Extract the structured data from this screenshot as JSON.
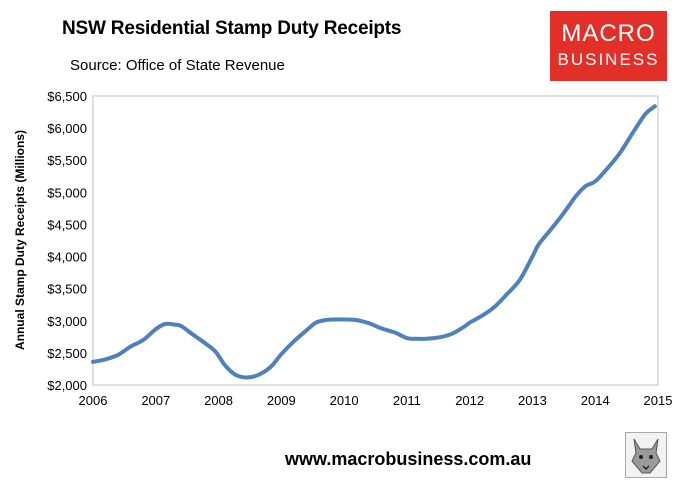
{
  "header": {
    "title": "NSW Residential Stamp Duty Receipts",
    "source": "Source: Office of State Revenue"
  },
  "logo": {
    "line1": "MACRO",
    "line2": "BUSINESS"
  },
  "footer": {
    "website": "www.macrobusiness.com.au"
  },
  "colors": {
    "series": "#4f81bd",
    "logo_bg": "#e23028"
  },
  "icons": {
    "mascot": "wolf-icon"
  },
  "chart_data": {
    "type": "line",
    "title": "NSW Residential Stamp Duty Receipts",
    "ylabel": "Annual Stamp Duty Receipts (Millions)",
    "xlabel": "",
    "xlim": [
      2006,
      2015
    ],
    "ylim": [
      2000,
      6500
    ],
    "x_ticks": [
      "2006",
      "2007",
      "2008",
      "2009",
      "2010",
      "2011",
      "2012",
      "2013",
      "2014",
      "2015"
    ],
    "y_ticks": [
      "$2,000",
      "$2,500",
      "$3,000",
      "$3,500",
      "$4,000",
      "$4,500",
      "$5,000",
      "$5,500",
      "$6,000",
      "$6,500"
    ],
    "y_tick_values": [
      2000,
      2500,
      3000,
      3500,
      4000,
      4500,
      5000,
      5500,
      6000,
      6500
    ],
    "grid": false,
    "series": [
      {
        "x": [
          2006.0,
          2006.2,
          2006.4,
          2006.6,
          2006.8,
          2007.0,
          2007.15,
          2007.3,
          2007.4,
          2007.6,
          2007.8,
          2007.95,
          2008.1,
          2008.25,
          2008.4,
          2008.55,
          2008.7,
          2008.85,
          2009.0,
          2009.2,
          2009.4,
          2009.55,
          2009.7,
          2009.85,
          2010.0,
          2010.2,
          2010.4,
          2010.6,
          2010.8,
          2011.0,
          2011.15,
          2011.3,
          2011.5,
          2011.7,
          2011.9,
          2012.0,
          2012.2,
          2012.4,
          2012.6,
          2012.8,
          2013.0,
          2013.1,
          2013.3,
          2013.5,
          2013.7,
          2013.85,
          2014.0,
          2014.2,
          2014.4,
          2014.6,
          2014.8,
          2014.95
        ],
        "values": [
          2360,
          2400,
          2470,
          2600,
          2700,
          2870,
          2950,
          2940,
          2920,
          2780,
          2640,
          2520,
          2310,
          2170,
          2120,
          2130,
          2190,
          2300,
          2480,
          2680,
          2850,
          2970,
          3010,
          3020,
          3020,
          3010,
          2960,
          2880,
          2820,
          2730,
          2720,
          2720,
          2740,
          2790,
          2900,
          2970,
          3080,
          3220,
          3420,
          3640,
          4000,
          4190,
          4430,
          4680,
          4950,
          5100,
          5170,
          5380,
          5620,
          5930,
          6220,
          6340
        ]
      }
    ]
  }
}
